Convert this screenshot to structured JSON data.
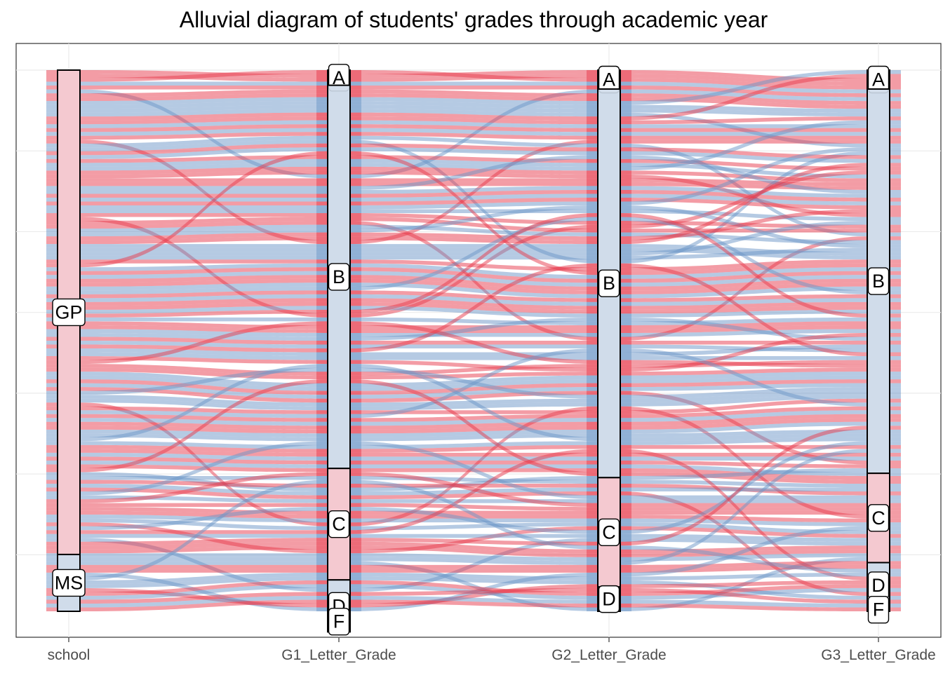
{
  "chart_data": {
    "type": "alluvial",
    "title": "Alluvial diagram of students' grades through academic year",
    "axes": [
      "school",
      "G1_Letter_Grade",
      "G2_Letter_Grade",
      "G3_Letter_Grade"
    ],
    "strata": [
      {
        "axis": "school",
        "labels": [
          "GP",
          "MS"
        ],
        "bounds": [
          0,
          0.895,
          1.0
        ]
      },
      {
        "axis": "G1_Letter_Grade",
        "labels": [
          "A",
          "B",
          "C",
          "D",
          "F"
        ],
        "bounds": [
          0,
          0.028,
          0.708,
          0.206,
          0.096,
          0.027
        ]
      },
      {
        "axis": "G2_Letter_Grade",
        "labels": [
          "A",
          "B",
          "C",
          "D"
        ],
        "bounds": [
          0,
          0.035,
          0.718,
          0.202,
          0.065
        ]
      },
      {
        "axis": "G3_Letter_Grade",
        "labels": [
          "A",
          "B",
          "C",
          "D",
          "F"
        ],
        "bounds": [
          0,
          0.035,
          0.71,
          0.165,
          0.084,
          0.006
        ]
      }
    ],
    "fill_colors": {
      "red": "#e8394c",
      "blue": "#6b96c8"
    },
    "stratum_fill_colors": {
      "red": "#f7c6cd",
      "blue": "#cfdbea"
    },
    "grid": true,
    "legend": "none",
    "ylim": [
      0,
      1
    ]
  }
}
